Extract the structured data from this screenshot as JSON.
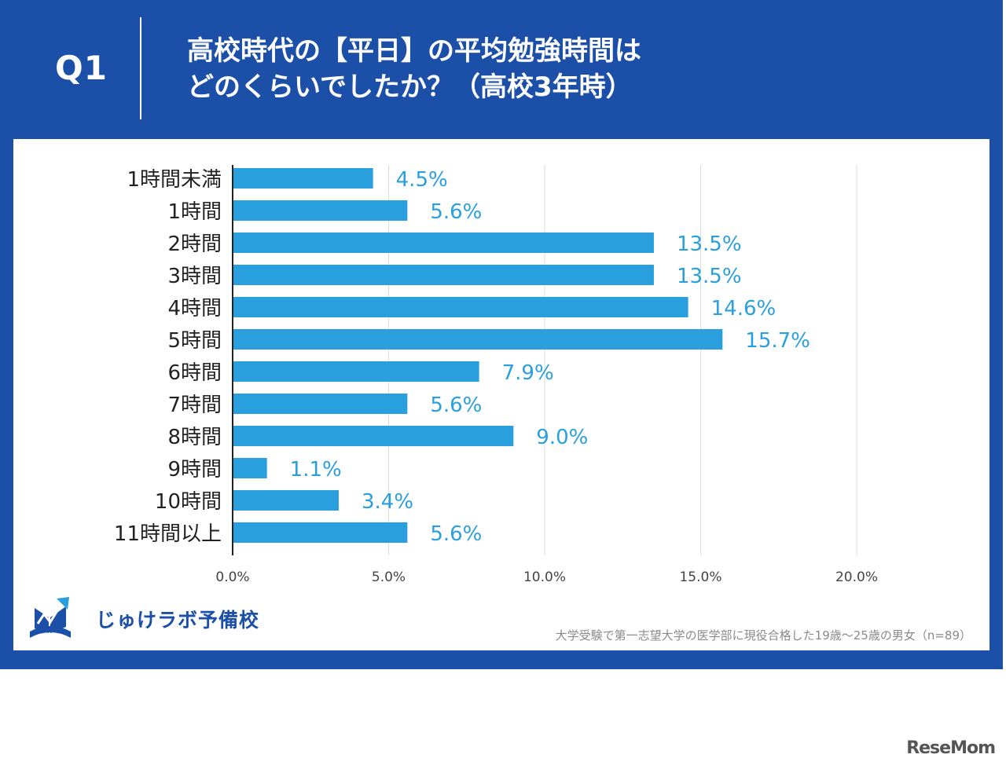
{
  "header": {
    "q_label": "Q1",
    "title_line1": "高校時代の【平日】の平均勉強時間は",
    "title_line2": "どのくらいでしたか？（高校3年時）"
  },
  "chart_data": {
    "type": "bar",
    "orientation": "horizontal",
    "categories": [
      "1時間未満",
      "1時間",
      "2時間",
      "3時間",
      "4時間",
      "5時間",
      "6時間",
      "7時間",
      "8時間",
      "9時間",
      "10時間",
      "11時間以上"
    ],
    "values": [
      4.5,
      5.6,
      13.5,
      13.5,
      14.6,
      15.7,
      7.9,
      5.6,
      9.0,
      1.1,
      3.4,
      5.6
    ],
    "value_labels": [
      "4.5%",
      "5.6%",
      "13.5%",
      "13.5%",
      "14.6%",
      "15.7%",
      "7.9%",
      "5.6%",
      "9.0%",
      "1.1%",
      "3.4%",
      "5.6%"
    ],
    "xlim": [
      0,
      20
    ],
    "x_ticks": [
      0,
      5,
      10,
      15,
      20
    ],
    "x_tick_labels": [
      "0.0%",
      "5.0%",
      "10.0%",
      "15.0%",
      "20.0%"
    ],
    "grid": true,
    "bar_color": "#2a9fdd",
    "label_color": "#2a9fdd"
  },
  "logo": {
    "text": "じゅけラボ予備校"
  },
  "footnote": "大学受験で第一志望大学の医学部に現役合格した19歳～25歳の男女（n=89）",
  "watermark": "ReseMom",
  "colors": {
    "panel": "#1b4fa8",
    "white": "#ffffff"
  }
}
